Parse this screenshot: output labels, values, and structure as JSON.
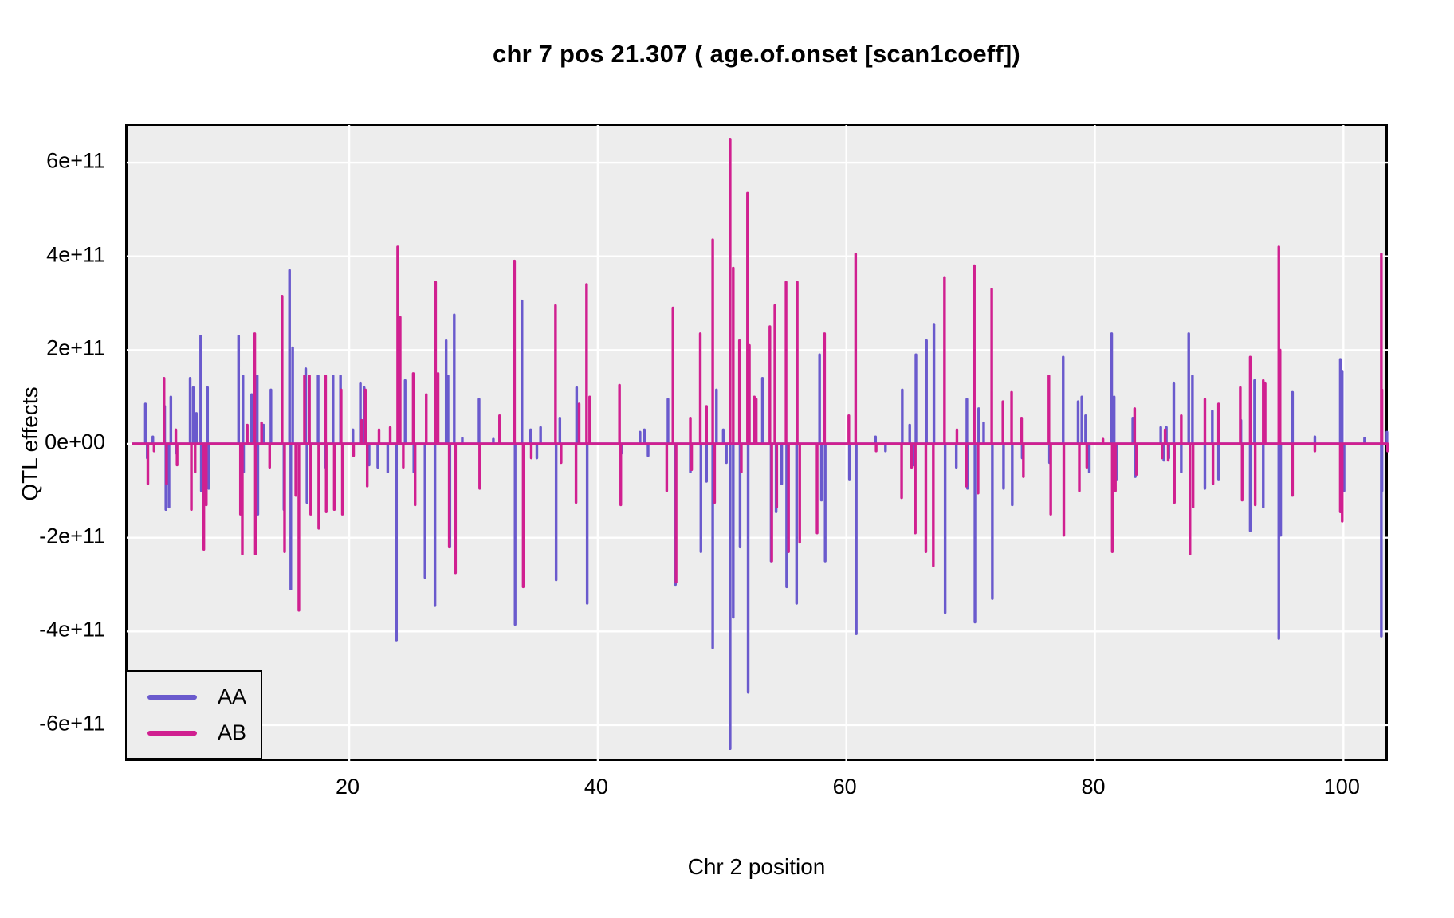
{
  "figure": {
    "title": "chr 7 pos 21.307 ( age.of.onset  [scan1coeff])"
  },
  "chart_data": {
    "type": "line",
    "title": "chr 7 pos 21.307 ( age.of.onset  [scan1coeff])",
    "xlabel": "Chr 2 position",
    "ylabel": "QTL effects",
    "legend_position": "bottom-left",
    "grid": "white major gridlines on gray panel",
    "panel_background": "#EDEDED",
    "grid_color": "#FFFFFF",
    "border_color": "#000000",
    "y_unit_multiplier": 100000000000.0,
    "xlim": [
      2.1,
      103.7
    ],
    "ylim": [
      -6.8,
      6.8
    ],
    "baseline_extent": [
      2.55,
      103.6
    ],
    "xticks": [
      {
        "value": 20,
        "label": "20"
      },
      {
        "value": 40,
        "label": "40"
      },
      {
        "value": 60,
        "label": "60"
      },
      {
        "value": 80,
        "label": "80"
      },
      {
        "value": 100,
        "label": "100"
      }
    ],
    "yticks": [
      {
        "value": 6,
        "label": "6e+11"
      },
      {
        "value": 4,
        "label": "4e+11"
      },
      {
        "value": 2,
        "label": "2e+11"
      },
      {
        "value": 0,
        "label": "0e+00"
      },
      {
        "value": -2,
        "label": "-2e+11"
      },
      {
        "value": -4,
        "label": "-4e+11"
      },
      {
        "value": -6,
        "label": "-6e+11"
      }
    ],
    "series": [
      {
        "name": "AA",
        "color": "#6A5ACD",
        "spikes": [
          [
            3.6,
            0.85
          ],
          [
            3.75,
            -0.3
          ],
          [
            4.2,
            0.15
          ],
          [
            5.15,
            0.8
          ],
          [
            5.25,
            -1.4
          ],
          [
            5.5,
            -1.35
          ],
          [
            5.65,
            1.0
          ],
          [
            6.1,
            -0.2
          ],
          [
            7.2,
            1.4
          ],
          [
            7.45,
            1.2
          ],
          [
            7.7,
            0.65
          ],
          [
            8.05,
            2.3
          ],
          [
            8.1,
            -1.0
          ],
          [
            8.6,
            1.2
          ],
          [
            8.7,
            -0.95
          ],
          [
            11.1,
            2.3
          ],
          [
            11.45,
            1.45
          ],
          [
            11.5,
            -0.6
          ],
          [
            12.15,
            1.05
          ],
          [
            12.6,
            1.45
          ],
          [
            12.65,
            -1.5
          ],
          [
            13.1,
            0.4
          ],
          [
            13.7,
            1.15
          ],
          [
            14.75,
            -1.4
          ],
          [
            15.2,
            3.7
          ],
          [
            15.3,
            -3.1
          ],
          [
            15.45,
            2.05
          ],
          [
            16.5,
            1.6
          ],
          [
            16.6,
            -1.25
          ],
          [
            17.5,
            1.45
          ],
          [
            18.1,
            -0.5
          ],
          [
            18.7,
            1.45
          ],
          [
            18.85,
            -1.0
          ],
          [
            19.3,
            1.45
          ],
          [
            20.3,
            0.3
          ],
          [
            20.9,
            1.3
          ],
          [
            21.2,
            1.2
          ],
          [
            21.6,
            -0.45
          ],
          [
            22.3,
            -0.5
          ],
          [
            23.1,
            -0.6
          ],
          [
            23.8,
            -4.2
          ],
          [
            24.5,
            1.35
          ],
          [
            25.2,
            -0.6
          ],
          [
            26.1,
            -2.85
          ],
          [
            26.9,
            -3.45
          ],
          [
            27.8,
            2.2
          ],
          [
            27.95,
            1.45
          ],
          [
            28.1,
            -2.2
          ],
          [
            28.45,
            2.75
          ],
          [
            29.1,
            0.12
          ],
          [
            30.45,
            0.95
          ],
          [
            31.6,
            0.1
          ],
          [
            33.35,
            -3.85
          ],
          [
            33.9,
            3.05
          ],
          [
            34.6,
            0.3
          ],
          [
            35.1,
            -0.3
          ],
          [
            35.4,
            0.35
          ],
          [
            36.65,
            -2.9
          ],
          [
            36.95,
            0.55
          ],
          [
            38.3,
            1.2
          ],
          [
            39.15,
            -3.4
          ],
          [
            41.9,
            -0.2
          ],
          [
            43.4,
            0.25
          ],
          [
            43.75,
            0.3
          ],
          [
            44.05,
            -0.25
          ],
          [
            45.65,
            0.95
          ],
          [
            46.25,
            -3.0
          ],
          [
            47.45,
            -0.6
          ],
          [
            48.3,
            -2.3
          ],
          [
            48.75,
            -0.8
          ],
          [
            49.25,
            -4.35
          ],
          [
            49.55,
            1.15
          ],
          [
            50.1,
            0.3
          ],
          [
            50.35,
            -0.4
          ],
          [
            50.65,
            -6.5
          ],
          [
            50.9,
            -3.7
          ],
          [
            51.45,
            -2.2
          ],
          [
            52.1,
            -5.3
          ],
          [
            52.65,
            0.4
          ],
          [
            53.25,
            1.4
          ],
          [
            53.95,
            -2.5
          ],
          [
            54.35,
            -1.45
          ],
          [
            54.8,
            -0.85
          ],
          [
            55.2,
            -3.05
          ],
          [
            56.0,
            -3.4
          ],
          [
            57.85,
            1.9
          ],
          [
            58.0,
            -1.2
          ],
          [
            58.3,
            -2.5
          ],
          [
            60.25,
            -0.75
          ],
          [
            60.8,
            -4.05
          ],
          [
            62.35,
            0.15
          ],
          [
            63.15,
            -0.15
          ],
          [
            64.5,
            1.15
          ],
          [
            65.1,
            0.4
          ],
          [
            65.35,
            -0.45
          ],
          [
            65.6,
            1.9
          ],
          [
            66.45,
            2.2
          ],
          [
            67.05,
            2.55
          ],
          [
            67.95,
            -3.6
          ],
          [
            68.85,
            -0.5
          ],
          [
            69.7,
            0.95
          ],
          [
            69.75,
            -0.95
          ],
          [
            70.35,
            -3.8
          ],
          [
            70.65,
            0.75
          ],
          [
            71.05,
            0.45
          ],
          [
            71.75,
            -3.3
          ],
          [
            72.65,
            -0.95
          ],
          [
            73.35,
            -1.3
          ],
          [
            74.15,
            -0.3
          ],
          [
            76.35,
            -0.4
          ],
          [
            77.45,
            1.85
          ],
          [
            78.65,
            0.9
          ],
          [
            78.95,
            1.0
          ],
          [
            79.25,
            0.6
          ],
          [
            79.55,
            -0.6
          ],
          [
            81.35,
            2.35
          ],
          [
            81.55,
            1.0
          ],
          [
            81.75,
            -0.75
          ],
          [
            83.05,
            0.55
          ],
          [
            83.25,
            -0.7
          ],
          [
            85.3,
            0.35
          ],
          [
            85.55,
            -0.35
          ],
          [
            85.75,
            0.35
          ],
          [
            85.95,
            -0.3
          ],
          [
            86.35,
            1.3
          ],
          [
            86.95,
            -0.6
          ],
          [
            87.55,
            2.35
          ],
          [
            87.85,
            1.45
          ],
          [
            88.85,
            -0.95
          ],
          [
            89.45,
            0.7
          ],
          [
            89.95,
            -0.75
          ],
          [
            91.75,
            0.5
          ],
          [
            92.5,
            -1.85
          ],
          [
            92.85,
            1.35
          ],
          [
            93.55,
            -1.35
          ],
          [
            94.8,
            -4.15
          ],
          [
            94.95,
            -1.95
          ],
          [
            95.9,
            1.1
          ],
          [
            97.7,
            0.15
          ],
          [
            99.75,
            1.8
          ],
          [
            99.9,
            1.55
          ],
          [
            100.05,
            -1.0
          ],
          [
            101.7,
            0.12
          ],
          [
            103.05,
            -4.1
          ],
          [
            103.1,
            -1.0
          ],
          [
            103.5,
            0.25
          ]
        ]
      },
      {
        "name": "AB",
        "color": "#D02090",
        "spikes": [
          [
            3.8,
            -0.85
          ],
          [
            4.3,
            -0.15
          ],
          [
            5.1,
            1.4
          ],
          [
            5.3,
            -0.85
          ],
          [
            6.05,
            0.3
          ],
          [
            6.15,
            -0.45
          ],
          [
            7.3,
            -1.4
          ],
          [
            7.6,
            -0.6
          ],
          [
            8.3,
            -2.25
          ],
          [
            8.5,
            -1.3
          ],
          [
            11.25,
            -1.5
          ],
          [
            11.4,
            -2.35
          ],
          [
            11.8,
            0.4
          ],
          [
            12.4,
            2.35
          ],
          [
            12.45,
            -2.35
          ],
          [
            12.95,
            0.45
          ],
          [
            13.6,
            -0.5
          ],
          [
            14.6,
            3.15
          ],
          [
            14.8,
            -2.3
          ],
          [
            15.7,
            -1.1
          ],
          [
            15.95,
            -3.55
          ],
          [
            16.4,
            1.45
          ],
          [
            16.8,
            1.45
          ],
          [
            16.9,
            -1.5
          ],
          [
            17.55,
            -1.8
          ],
          [
            18.1,
            1.45
          ],
          [
            18.15,
            -1.45
          ],
          [
            18.8,
            -1.4
          ],
          [
            19.35,
            1.15
          ],
          [
            19.45,
            -1.5
          ],
          [
            20.35,
            -0.25
          ],
          [
            21.0,
            0.5
          ],
          [
            21.3,
            1.15
          ],
          [
            21.45,
            -0.9
          ],
          [
            22.4,
            0.3
          ],
          [
            23.3,
            0.35
          ],
          [
            23.9,
            4.2
          ],
          [
            24.1,
            2.7
          ],
          [
            24.35,
            -0.5
          ],
          [
            25.15,
            1.5
          ],
          [
            25.3,
            -1.3
          ],
          [
            26.2,
            1.05
          ],
          [
            26.95,
            3.45
          ],
          [
            27.15,
            1.5
          ],
          [
            28.05,
            -2.2
          ],
          [
            28.55,
            -2.75
          ],
          [
            30.5,
            -0.95
          ],
          [
            32.1,
            0.6
          ],
          [
            33.3,
            3.9
          ],
          [
            34.0,
            -3.05
          ],
          [
            34.65,
            -0.3
          ],
          [
            36.6,
            2.95
          ],
          [
            37.05,
            -0.4
          ],
          [
            38.25,
            -1.25
          ],
          [
            38.5,
            0.85
          ],
          [
            39.1,
            3.4
          ],
          [
            39.35,
            1.0
          ],
          [
            41.75,
            1.25
          ],
          [
            41.85,
            -1.3
          ],
          [
            45.55,
            -1.0
          ],
          [
            46.05,
            2.9
          ],
          [
            46.3,
            -2.95
          ],
          [
            47.45,
            0.55
          ],
          [
            47.55,
            -0.55
          ],
          [
            48.25,
            2.35
          ],
          [
            48.75,
            0.8
          ],
          [
            49.25,
            4.35
          ],
          [
            49.4,
            -1.25
          ],
          [
            50.65,
            6.5
          ],
          [
            50.9,
            3.75
          ],
          [
            51.4,
            2.2
          ],
          [
            51.55,
            -0.6
          ],
          [
            52.05,
            5.35
          ],
          [
            52.2,
            2.1
          ],
          [
            52.6,
            1.0
          ],
          [
            52.75,
            0.95
          ],
          [
            53.85,
            2.5
          ],
          [
            54.0,
            -2.5
          ],
          [
            54.25,
            2.95
          ],
          [
            54.4,
            -1.35
          ],
          [
            55.15,
            3.45
          ],
          [
            55.35,
            -2.3
          ],
          [
            56.05,
            3.45
          ],
          [
            56.25,
            -2.1
          ],
          [
            57.65,
            -1.9
          ],
          [
            58.25,
            2.35
          ],
          [
            60.2,
            0.6
          ],
          [
            60.75,
            4.05
          ],
          [
            62.4,
            -0.15
          ],
          [
            64.45,
            -1.15
          ],
          [
            65.25,
            -0.5
          ],
          [
            65.55,
            -1.9
          ],
          [
            66.4,
            -2.3
          ],
          [
            67.0,
            -2.6
          ],
          [
            67.9,
            3.55
          ],
          [
            68.9,
            0.3
          ],
          [
            69.65,
            -0.9
          ],
          [
            70.3,
            3.8
          ],
          [
            70.6,
            -1.05
          ],
          [
            71.7,
            3.3
          ],
          [
            72.6,
            0.9
          ],
          [
            73.3,
            1.1
          ],
          [
            74.1,
            0.55
          ],
          [
            74.25,
            -0.7
          ],
          [
            76.3,
            1.45
          ],
          [
            76.45,
            -1.5
          ],
          [
            77.5,
            -1.95
          ],
          [
            78.75,
            -1.0
          ],
          [
            79.35,
            -0.5
          ],
          [
            80.65,
            0.1
          ],
          [
            81.4,
            -2.3
          ],
          [
            81.65,
            -1.0
          ],
          [
            83.2,
            0.75
          ],
          [
            83.35,
            -0.65
          ],
          [
            85.4,
            -0.3
          ],
          [
            85.65,
            0.3
          ],
          [
            85.9,
            -0.35
          ],
          [
            86.4,
            -1.25
          ],
          [
            86.95,
            0.6
          ],
          [
            87.65,
            -2.35
          ],
          [
            87.9,
            -1.35
          ],
          [
            88.85,
            0.95
          ],
          [
            89.5,
            -0.85
          ],
          [
            89.95,
            0.85
          ],
          [
            91.7,
            1.2
          ],
          [
            91.85,
            -1.2
          ],
          [
            92.5,
            1.85
          ],
          [
            92.9,
            -1.3
          ],
          [
            93.55,
            1.35
          ],
          [
            93.7,
            1.3
          ],
          [
            94.8,
            4.2
          ],
          [
            94.9,
            2.0
          ],
          [
            95.9,
            -1.1
          ],
          [
            97.7,
            -0.15
          ],
          [
            99.75,
            -1.45
          ],
          [
            99.9,
            -1.65
          ],
          [
            103.05,
            4.05
          ],
          [
            103.1,
            1.15
          ],
          [
            103.55,
            -0.15
          ]
        ]
      }
    ]
  }
}
